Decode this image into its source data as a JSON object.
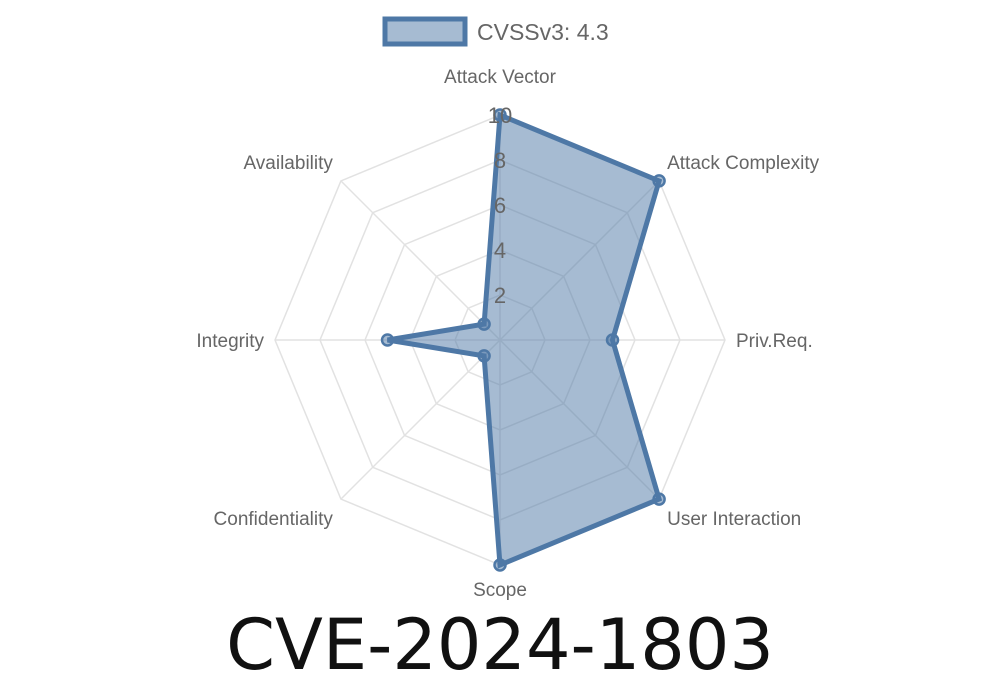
{
  "chart_data": {
    "type": "radar",
    "axes": [
      "Attack Vector",
      "Attack Complexity",
      "Priv.Req.",
      "User Interaction",
      "Scope",
      "Confidentiality",
      "Integrity",
      "Availability"
    ],
    "series": [
      {
        "name": "CVSSv3: 4.3",
        "values": [
          10,
          10,
          5,
          10,
          10,
          1,
          5,
          1
        ]
      }
    ],
    "rlim": [
      0,
      10
    ],
    "ticks": [
      "2",
      "4",
      "6",
      "8",
      "10"
    ],
    "tick_values": [
      2,
      4,
      6,
      8,
      10
    ],
    "legend_placement": "top",
    "grid": true,
    "colors": {
      "stroke": "#4e78a6",
      "fill": "rgba(78,120,166,0.5)",
      "grid": "#e2e2e2"
    }
  },
  "title": "CVE-2024-1803"
}
